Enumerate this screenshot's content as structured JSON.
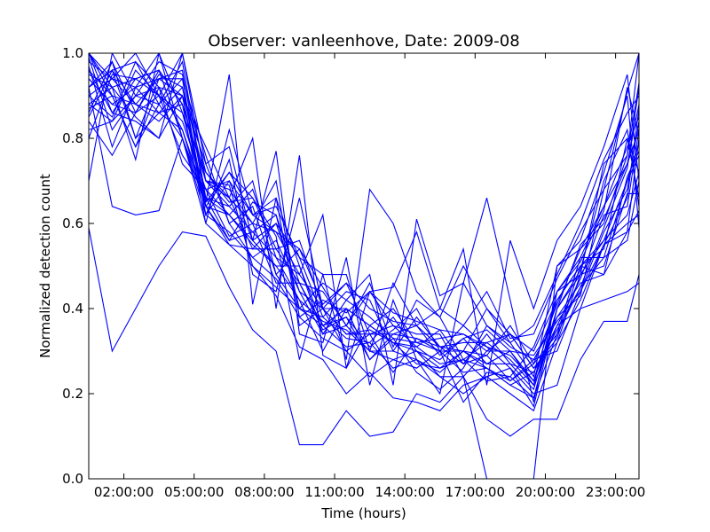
{
  "chart_data": {
    "type": "line",
    "title": "Observer: vanleenhove, Date: 2009-08",
    "xlabel": "Time (hours)",
    "ylabel": "Normalized detection count",
    "xlim": [
      0.5,
      24
    ],
    "ylim": [
      0.0,
      1.0
    ],
    "x_ticks": [
      {
        "value": 2,
        "label": "02:00:00"
      },
      {
        "value": 5,
        "label": "05:00:00"
      },
      {
        "value": 8,
        "label": "08:00:00"
      },
      {
        "value": 11,
        "label": "11:00:00"
      },
      {
        "value": 14,
        "label": "14:00:00"
      },
      {
        "value": 17,
        "label": "17:00:00"
      },
      {
        "value": 20,
        "label": "20:00:00"
      },
      {
        "value": 23,
        "label": "23:00:00"
      }
    ],
    "y_ticks": [
      {
        "value": 0.0,
        "label": "0.0"
      },
      {
        "value": 0.2,
        "label": "0.2"
      },
      {
        "value": 0.4,
        "label": "0.4"
      },
      {
        "value": 0.6,
        "label": "0.6"
      },
      {
        "value": 0.8,
        "label": "0.8"
      },
      {
        "value": 1.0,
        "label": "1.0"
      }
    ],
    "grid": false,
    "line_color": "#0000ff",
    "x": [
      0.5,
      1.5,
      2.5,
      3.5,
      4.5,
      5.5,
      6.5,
      7.5,
      8.5,
      9.5,
      10.5,
      11.5,
      12.5,
      13.5,
      14.5,
      15.5,
      16.5,
      17.5,
      18.5,
      19.5,
      20.5,
      21.5,
      22.5,
      23.5,
      24
    ],
    "series": [
      {
        "values": [
          0.59,
          0.3,
          0.4,
          0.5,
          0.58,
          0.57,
          0.45,
          0.35,
          0.3,
          0.08,
          0.08,
          0.16,
          0.1,
          0.11,
          0.2,
          0.18,
          0.24,
          0.14,
          0.1,
          0.14,
          0.14,
          0.28,
          0.37,
          0.37,
          0.48
        ]
      },
      {
        "values": [
          1.0,
          0.92,
          0.75,
          1.0,
          0.8,
          0.6,
          0.55,
          0.54,
          0.54,
          0.56,
          0.4,
          0.4,
          0.36,
          0.32,
          0.3,
          0.26,
          0.28,
          0.26,
          0.22,
          0.25,
          0.36,
          0.4,
          0.42,
          0.44,
          0.46
        ]
      },
      {
        "values": [
          0.87,
          0.9,
          0.78,
          0.88,
          0.8,
          0.64,
          0.55,
          0.5,
          0.45,
          0.4,
          0.38,
          0.33,
          0.32,
          0.26,
          0.28,
          0.24,
          0.2,
          0.24,
          0.26,
          0.2,
          0.22,
          0.4,
          0.55,
          0.58,
          0.63
        ]
      },
      {
        "values": [
          0.95,
          0.92,
          0.85,
          0.8,
          1.0,
          0.7,
          0.69,
          0.5,
          0.43,
          0.31,
          0.28,
          0.2,
          0.25,
          0.19,
          0.18,
          0.16,
          0.22,
          0.24,
          0.2,
          0.16,
          0.32,
          0.42,
          0.55,
          0.6,
          0.62
        ]
      },
      {
        "values": [
          0.82,
          0.84,
          0.96,
          0.9,
          0.76,
          0.68,
          0.62,
          0.56,
          0.5,
          0.42,
          0.37,
          0.35,
          0.3,
          0.3,
          0.28,
          0.25,
          0.3,
          0.27,
          0.27,
          0.25,
          0.35,
          0.45,
          0.52,
          0.7,
          0.79
        ]
      },
      {
        "values": [
          0.7,
          1.0,
          0.9,
          0.98,
          0.95,
          0.72,
          0.65,
          0.66,
          0.54,
          0.46,
          0.36,
          0.4,
          0.28,
          0.34,
          0.33,
          0.31,
          0.27,
          0.29,
          0.23,
          0.28,
          0.3,
          0.44,
          0.58,
          0.68,
          0.84
        ]
      },
      {
        "values": [
          0.9,
          0.85,
          0.98,
          0.88,
          0.98,
          0.66,
          0.62,
          0.55,
          0.5,
          0.5,
          0.34,
          0.42,
          0.38,
          0.33,
          0.32,
          0.3,
          0.25,
          0.26,
          0.22,
          0.19,
          0.4,
          0.48,
          0.5,
          0.67,
          0.67
        ]
      },
      {
        "values": [
          1.0,
          0.94,
          0.88,
          0.84,
          0.9,
          0.78,
          0.66,
          0.6,
          0.58,
          0.54,
          0.45,
          0.36,
          0.44,
          0.39,
          0.37,
          0.35,
          0.34,
          0.31,
          0.29,
          0.23,
          0.42,
          0.5,
          0.56,
          0.62,
          0.72
        ]
      },
      {
        "values": [
          0.86,
          0.98,
          0.8,
          0.94,
          0.94,
          0.76,
          0.6,
          0.64,
          0.48,
          0.54,
          0.41,
          0.46,
          0.4,
          0.37,
          0.36,
          0.29,
          0.33,
          0.35,
          0.3,
          0.23,
          0.38,
          0.46,
          0.48,
          0.58,
          0.8
        ]
      },
      {
        "values": [
          0.94,
          0.88,
          0.92,
          0.86,
          0.88,
          0.7,
          0.64,
          0.58,
          0.52,
          0.48,
          0.4,
          0.34,
          0.35,
          0.32,
          0.31,
          0.27,
          0.28,
          0.23,
          0.24,
          0.31,
          0.44,
          0.52,
          0.52,
          0.56,
          0.7
        ]
      },
      {
        "values": [
          0.84,
          0.76,
          0.86,
          0.9,
          0.84,
          0.68,
          0.57,
          0.6,
          0.46,
          0.46,
          0.44,
          0.36,
          0.46,
          0.31,
          0.42,
          0.38,
          0.28,
          0.32,
          0.34,
          0.26,
          0.33,
          0.5,
          0.48,
          0.71,
          0.77
        ]
      },
      {
        "values": [
          0.92,
          0.96,
          0.98,
          0.92,
          0.74,
          0.68,
          0.7,
          0.62,
          0.66,
          0.5,
          0.36,
          0.31,
          0.32,
          0.38,
          0.3,
          0.28,
          0.33,
          0.27,
          0.3,
          0.22,
          0.36,
          0.47,
          0.62,
          0.64,
          0.82
        ]
      },
      {
        "values": [
          0.96,
          0.86,
          0.84,
          0.8,
          0.9,
          0.74,
          0.6,
          0.52,
          0.56,
          0.44,
          0.4,
          0.34,
          0.34,
          0.36,
          0.34,
          0.34,
          0.24,
          0.3,
          0.3,
          0.29,
          0.37,
          0.44,
          0.55,
          0.66,
          0.87
        ]
      },
      {
        "values": [
          1.0,
          0.9,
          0.88,
          0.86,
          0.82,
          0.64,
          0.56,
          0.58,
          0.62,
          0.4,
          0.36,
          0.38,
          0.31,
          0.35,
          0.4,
          0.3,
          0.3,
          0.26,
          0.23,
          0.27,
          0.34,
          0.45,
          0.59,
          0.73,
          0.92
        ]
      },
      {
        "values": [
          0.98,
          0.94,
          1.0,
          0.9,
          0.86,
          0.72,
          0.66,
          0.54,
          0.6,
          0.52,
          0.38,
          0.44,
          0.42,
          0.3,
          0.38,
          0.31,
          0.3,
          0.29,
          0.36,
          0.27,
          0.41,
          0.54,
          0.6,
          0.76,
          1.0
        ]
      },
      {
        "values": [
          0.88,
          0.92,
          0.94,
          0.96,
          0.8,
          0.62,
          0.58,
          0.52,
          0.47,
          0.38,
          0.33,
          0.3,
          0.24,
          0.28,
          0.26,
          0.3,
          0.18,
          0.25,
          0.24,
          0.19,
          0.34,
          0.52,
          0.64,
          0.78,
          0.85
        ]
      },
      {
        "values": [
          0.92,
          0.64,
          0.62,
          0.63,
          0.8,
          0.66,
          0.56,
          0.65,
          0.62,
          0.46,
          0.35,
          0.38,
          0.28,
          0.33,
          0.25,
          0.21,
          0.26,
          0.36,
          0.31,
          0.28,
          0.38,
          0.43,
          0.68,
          0.76,
          0.93
        ]
      },
      {
        "values": [
          0.97,
          0.78,
          0.92,
          1.0,
          0.86,
          0.65,
          0.95,
          0.41,
          0.66,
          0.36,
          0.4,
          0.3,
          0.34,
          0.25,
          0.33,
          0.3,
          0.36,
          0.31,
          0.26,
          0.17,
          0.4,
          0.55,
          0.61,
          0.74,
          0.82
        ]
      },
      {
        "values": [
          0.8,
          0.95,
          0.94,
          0.96,
          0.88,
          0.7,
          0.68,
          0.6,
          0.7,
          0.38,
          0.42,
          0.39,
          0.44,
          0.36,
          0.31,
          0.35,
          0.27,
          0.34,
          0.27,
          0.21,
          0.4,
          0.49,
          0.7,
          0.82,
          0.64
        ]
      },
      {
        "values": [
          0.92,
          0.98,
          0.86,
          0.95,
          0.92,
          0.64,
          0.72,
          0.62,
          0.64,
          0.52,
          0.48,
          0.48,
          0.3,
          0.46,
          0.36,
          0.4,
          0.36,
          0.44,
          0.33,
          0.34,
          0.47,
          0.58,
          0.68,
          0.91,
          1.0
        ]
      },
      {
        "values": [
          0.96,
          0.9,
          0.78,
          0.92,
          0.9,
          0.64,
          0.62,
          0.68,
          0.52,
          0.42,
          0.3,
          0.4,
          0.36,
          0.4,
          0.32,
          0.33,
          0.34,
          0.3,
          0.34,
          0.26,
          0.32,
          0.48,
          0.74,
          0.8,
          0.72
        ]
      },
      {
        "values": [
          0.99,
          0.82,
          0.9,
          0.88,
          0.94,
          0.62,
          0.75,
          0.48,
          0.44,
          0.66,
          0.4,
          0.46,
          0.34,
          0.34,
          0.36,
          0.31,
          0.32,
          0.32,
          0.28,
          0.22,
          0.44,
          0.51,
          0.63,
          0.92,
          0.81
        ]
      },
      {
        "values": [
          0.85,
          0.96,
          0.8,
          0.86,
          0.92,
          0.7,
          0.66,
          0.8,
          0.4,
          0.76,
          0.29,
          0.26,
          0.36,
          0.32,
          0.27,
          0.26,
          0.3,
          0.4,
          0.34,
          0.3,
          0.42,
          0.5,
          0.54,
          0.8,
          0.66
        ]
      },
      {
        "values": [
          1.0,
          0.86,
          0.94,
          0.9,
          1.0,
          0.74,
          0.78,
          0.56,
          0.77,
          0.34,
          0.32,
          0.52,
          0.22,
          0.42,
          0.28,
          0.2,
          0.46,
          0.36,
          0.32,
          0.36,
          0.48,
          0.6,
          0.75,
          0.86,
          0.9
        ]
      },
      {
        "values": [
          0.9,
          0.94,
          0.92,
          0.94,
          0.96,
          0.65,
          0.72,
          0.66,
          0.57,
          0.28,
          0.48,
          0.28,
          0.68,
          0.6,
          0.44,
          0.38,
          0.5,
          0.4,
          0.32,
          0.24,
          0.5,
          0.56,
          0.72,
          0.9,
          0.59
        ]
      },
      {
        "values": [
          0.94,
          0.88,
          0.86,
          0.96,
          0.88,
          0.6,
          0.82,
          0.62,
          0.58,
          0.48,
          0.62,
          0.26,
          0.44,
          0.45,
          0.58,
          0.4,
          0.54,
          0.22,
          0.56,
          0.4,
          0.56,
          0.64,
          0.78,
          0.95,
          0.7
        ]
      },
      {
        "values": [
          0.88,
          0.84,
          0.9,
          0.92,
          0.82,
          0.66,
          0.64,
          0.7,
          0.48,
          0.4,
          0.46,
          0.42,
          0.48,
          0.22,
          0.61,
          0.43,
          0.46,
          0.66,
          0.42,
          0.18,
          0.44,
          0.48,
          0.56,
          0.7,
          0.76
        ]
      },
      {
        "values": [
          0.92,
          0.96,
          0.88,
          0.94,
          0.9,
          0.62,
          0.7,
          0.56,
          0.6,
          0.44,
          0.34,
          0.36,
          0.3,
          0.28,
          0.3,
          0.24,
          0.24,
          0.0,
          0.0,
          0.0,
          0.5,
          0.54,
          0.64,
          0.74,
          0.88
        ]
      }
    ]
  }
}
